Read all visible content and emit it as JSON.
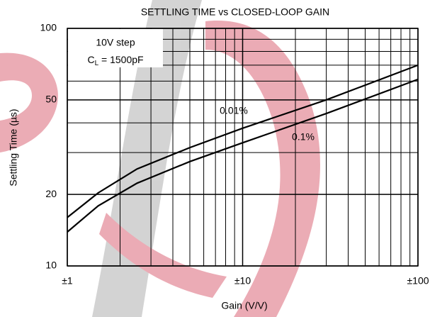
{
  "chart_data": {
    "type": "line",
    "title": "SETTLING TIME vs CLOSED-LOOP GAIN",
    "x_label": "Gain (V/V)",
    "y_label": "Settling Time (µs)",
    "x_scale": "log",
    "y_scale": "log",
    "grid": true,
    "xlim": [
      1,
      100
    ],
    "ylim": [
      10,
      100
    ],
    "xticks": [
      {
        "value": 1,
        "label": "±1"
      },
      {
        "value": 10,
        "label": "±10"
      },
      {
        "value": 100,
        "label": "±100"
      }
    ],
    "yticks": [
      10,
      20,
      50,
      100
    ],
    "minor_xticks": [
      2,
      3,
      4,
      5,
      6,
      7,
      8,
      9,
      20,
      30,
      40,
      50,
      60,
      70,
      80,
      90
    ],
    "minor_yticks": [
      30,
      40,
      60,
      70,
      80,
      90
    ],
    "annotation": {
      "line1": "10V step",
      "line2_main": "C",
      "line2_sub": "L",
      "line2_rest": " = 1500pF"
    },
    "series": [
      {
        "name": "0.01%",
        "color": "#000000",
        "x": [
          1,
          1.5,
          2.5,
          5,
          10,
          30,
          100
        ],
        "values": [
          16,
          20.3,
          25.6,
          31.5,
          38,
          50,
          70
        ]
      },
      {
        "name": "0.1%",
        "color": "#000000",
        "x": [
          1,
          1.5,
          2.5,
          5,
          10,
          30,
          100
        ],
        "values": [
          13.9,
          17.9,
          22.3,
          27.5,
          33,
          43.8,
          61
        ]
      }
    ]
  }
}
